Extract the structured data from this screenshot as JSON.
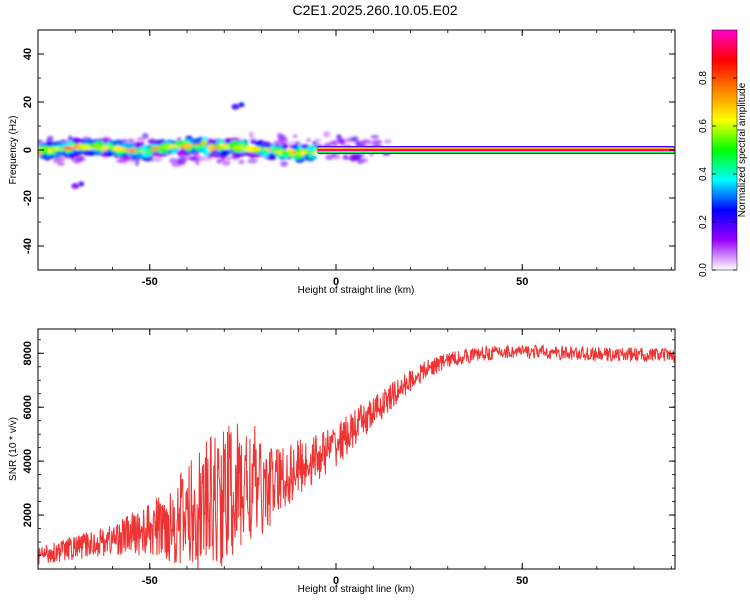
{
  "figure_title": "C2E1.2025.260.10.05.E02",
  "chart_data": [
    {
      "type": "heatmap",
      "title": "C2E1.2025.260.10.05.E02",
      "xlabel": "Height of straight line (km)",
      "ylabel": "Frequency (Hz)",
      "xlim": [
        -80,
        91
      ],
      "ylim": [
        -50,
        50
      ],
      "xticks": [
        -50,
        0,
        50
      ],
      "yticks": [
        -40,
        -20,
        0,
        20,
        40
      ],
      "colorbar": {
        "label": "Normalized spectral amplitude",
        "range": [
          0.0,
          1.0
        ],
        "ticks": [
          0.0,
          0.2,
          0.4,
          0.6,
          0.8
        ],
        "tick_labels": [
          "0.0",
          "0.2",
          "0.4",
          "0.6",
          "0.8"
        ],
        "colors": [
          "#ffffff",
          "#9900ff",
          "#0000ff",
          "#00ffff",
          "#00ff00",
          "#ffff00",
          "#ff8000",
          "#ff0000",
          "#ff00cc"
        ]
      },
      "features": [
        {
          "name": "noisy band",
          "x_range": [
            -80,
            -5
          ],
          "frequency_hz": 0,
          "half_width_hz": 3,
          "amplitude": 0.55
        },
        {
          "name": "narrow line",
          "x_range": [
            -5,
            91
          ],
          "frequency_hz": 0,
          "amplitude": 0.95
        },
        {
          "name": "spot",
          "x": -27,
          "frequency_hz": 18,
          "amplitude": 0.2
        },
        {
          "name": "spot",
          "x": -70,
          "frequency_hz": -15,
          "amplitude": 0.15
        }
      ]
    },
    {
      "type": "line",
      "xlabel": "Height of straight line (km)",
      "ylabel": "SNR (10 * v/v)",
      "xlim": [
        -80,
        91
      ],
      "ylim": [
        0,
        8900
      ],
      "xticks": [
        -50,
        0,
        50
      ],
      "yticks": [
        2000,
        4000,
        6000,
        8000
      ],
      "series": [
        {
          "name": "SNR",
          "color": "#ee3333",
          "x": [
            -80,
            -75,
            -70,
            -65,
            -60,
            -55,
            -50,
            -45,
            -40,
            -35,
            -30,
            -25,
            -22,
            -20,
            -15,
            -10,
            -5,
            0,
            5,
            10,
            15,
            20,
            25,
            30,
            35,
            40,
            45,
            50,
            55,
            60,
            65,
            70,
            75,
            80,
            85,
            91
          ],
          "y": [
            500,
            650,
            800,
            950,
            1100,
            1300,
            1450,
            1650,
            1950,
            2350,
            2700,
            3000,
            3100,
            2900,
            3300,
            3750,
            4150,
            4600,
            5200,
            5800,
            6400,
            7000,
            7450,
            7750,
            7900,
            8000,
            8050,
            8050,
            8050,
            8000,
            8000,
            7950,
            7950,
            7950,
            7950,
            7900
          ],
          "variability": [
            350,
            400,
            450,
            500,
            600,
            800,
            1000,
            1400,
            2000,
            2400,
            2700,
            2500,
            2300,
            1700,
            1300,
            1100,
            900,
            800,
            700,
            600,
            500,
            400,
            350,
            300,
            280,
            280,
            260,
            260,
            260,
            260,
            260,
            260,
            260,
            260,
            260,
            260
          ]
        }
      ]
    }
  ]
}
